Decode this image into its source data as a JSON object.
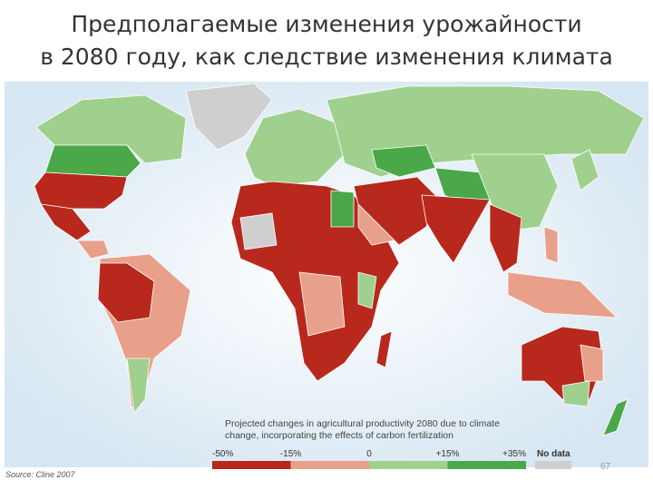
{
  "header": {
    "title_lines": [
      "Предполагаемые изменения урожайности",
      "в 2080 году, как следствие изменения климата"
    ]
  },
  "legend": {
    "title_lines": [
      "Projected changes in agricultural productivity 2080 due to climate",
      "change, incorporating the effects of carbon fertilization"
    ],
    "ticks": [
      "-50%",
      "-15%",
      "0",
      "+15%",
      "+35%"
    ],
    "bands": [
      "#b8281c",
      "#e8a08a",
      "#9fd08e",
      "#4aa848"
    ],
    "no_data": {
      "label": "No data",
      "color": "#cfcfcf"
    }
  },
  "footer": {
    "source": "Source: Cline 2007",
    "page_number": "67"
  }
}
